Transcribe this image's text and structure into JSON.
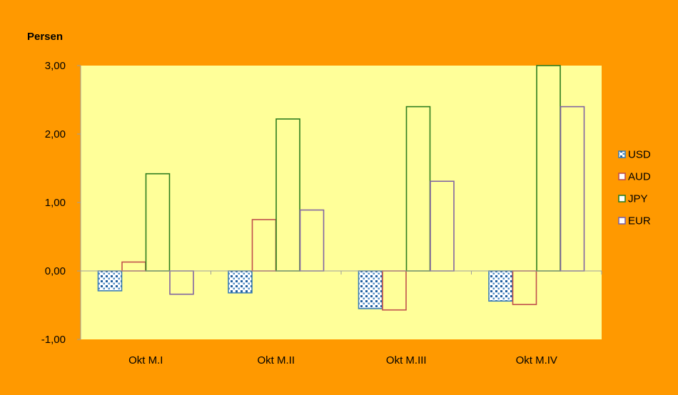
{
  "colors": {
    "outer_background": "#FF9900",
    "plot_background": "#FFFF99",
    "USD_stroke": "#3D7FB5",
    "USD_dot": "#1F5FA0",
    "AUD_stroke": "#C0504D",
    "JPY_stroke": "#2E7D1F",
    "EUR_stroke": "#8064A2",
    "gridline": "#9E9E9E",
    "text": "#000000"
  },
  "chart_data": {
    "type": "bar",
    "ylabel": "Persen",
    "ylim": [
      -1.0,
      3.0
    ],
    "y_ticks": [
      -1.0,
      0.0,
      1.0,
      2.0,
      3.0
    ],
    "y_tick_labels": [
      "-1,00",
      "0,00",
      "1,00",
      "2,00",
      "3,00"
    ],
    "categories": [
      "Okt M.I",
      "Okt M.II",
      "Okt M.III",
      "Okt M.IV"
    ],
    "series": [
      {
        "name": "USD",
        "values": [
          -0.29,
          -0.32,
          -0.55,
          -0.44
        ],
        "pattern": "dots"
      },
      {
        "name": "AUD",
        "values": [
          0.13,
          0.75,
          -0.57,
          -0.49
        ]
      },
      {
        "name": "JPY",
        "values": [
          1.42,
          2.22,
          2.4,
          3.0
        ]
      },
      {
        "name": "EUR",
        "values": [
          -0.34,
          0.89,
          1.31,
          2.4
        ]
      }
    ],
    "legend_position": "right",
    "grid": false
  }
}
